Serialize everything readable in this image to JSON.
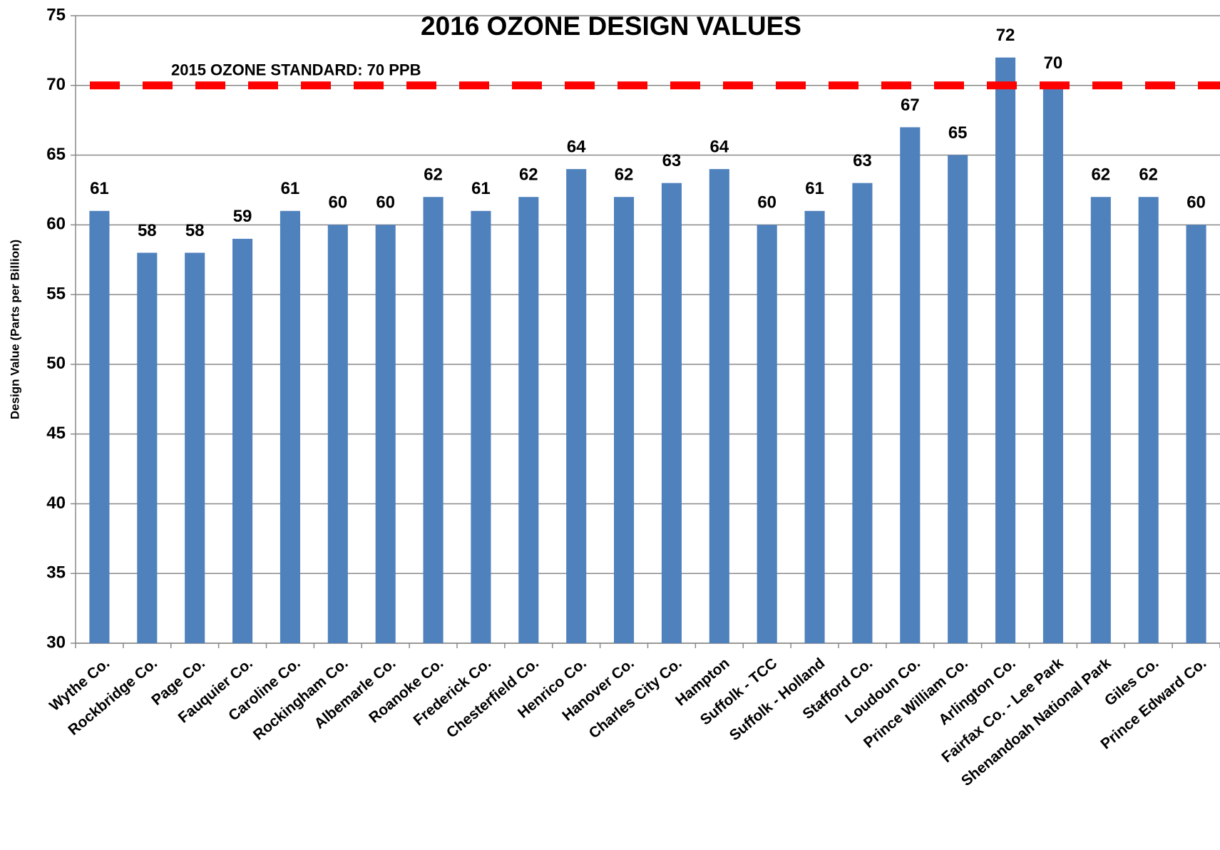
{
  "chart_data": {
    "type": "bar",
    "title": "2016 OZONE DESIGN VALUES",
    "y_label": "Design Value (Parts per Billion)",
    "categories": [
      "Wythe Co.",
      "Rockbridge Co.",
      "Page Co.",
      "Fauquier Co.",
      "Caroline Co.",
      "Rockingham Co.",
      "Albemarle Co.",
      "Roanoke Co.",
      "Frederick Co.",
      "Chesterfield Co.",
      "Henrico Co.",
      "Hanover Co.",
      "Charles City Co.",
      "Hampton",
      "Suffolk - TCC",
      "Suffolk - Holland",
      "Stafford Co.",
      "Loudoun Co.",
      "Prince William Co.",
      "Arlington Co.",
      "Fairfax Co. - Lee Park",
      "Shenandoah National Park",
      "Giles Co.",
      "Prince Edward Co."
    ],
    "values": [
      61,
      58,
      58,
      59,
      61,
      60,
      60,
      62,
      61,
      62,
      64,
      62,
      63,
      64,
      60,
      61,
      63,
      67,
      65,
      72,
      70,
      62,
      62,
      60
    ],
    "color": "#4f81bd",
    "ylim": [
      30,
      75
    ],
    "yticks": [
      30,
      35,
      40,
      45,
      50,
      55,
      60,
      65,
      70,
      75
    ],
    "grid": true,
    "reference_line": {
      "value": 70,
      "label": "2015  OZONE STANDARD:  70 PPB",
      "color": "#ff0000"
    }
  }
}
